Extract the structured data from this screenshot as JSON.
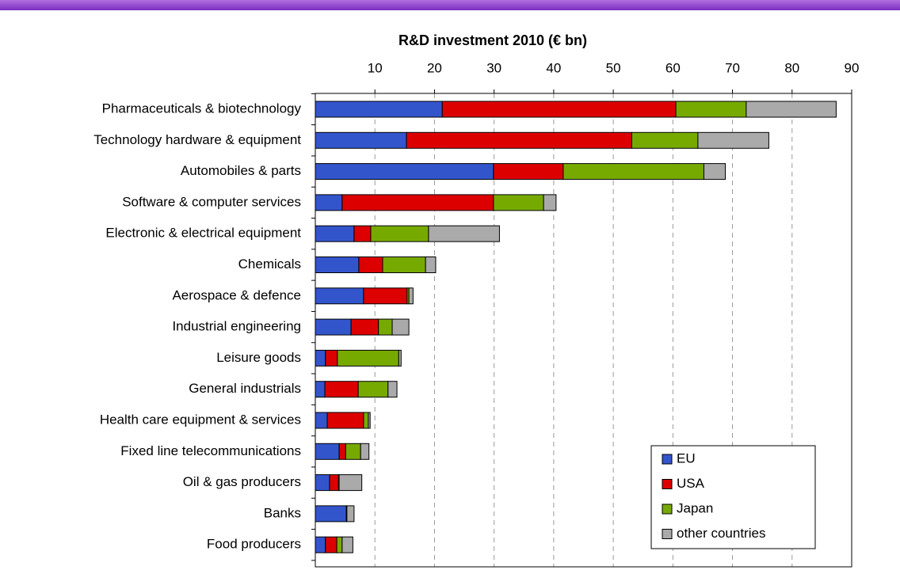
{
  "chart_data": {
    "type": "stacked-barh",
    "title": "R&D investment 2010 (€ bn)",
    "categories": [
      "Pharmaceuticals & biotechnology",
      "Technology hardware & equipment",
      "Automobiles & parts",
      "Software & computer services",
      "Electronic & electrical equipment",
      "Chemicals",
      "Aerospace & defence",
      "Industrial engineering",
      "Leisure goods",
      "General industrials",
      "Health care equipment & services",
      "Fixed line telecommunications",
      "Oil & gas producers",
      "Banks",
      "Food producers"
    ],
    "series": [
      {
        "name": "EU",
        "color": "#3355cc",
        "values": [
          21.3,
          15.3,
          29.9,
          4.5,
          6.5,
          7.3,
          8.1,
          6.0,
          1.7,
          1.6,
          2.0,
          4.0,
          2.4,
          5.2,
          1.7
        ]
      },
      {
        "name": "USA",
        "color": "#dd0000",
        "values": [
          39.2,
          37.8,
          11.7,
          25.4,
          2.8,
          4.0,
          7.3,
          4.6,
          2.0,
          5.6,
          6.1,
          1.1,
          1.5,
          0.1,
          1.9
        ]
      },
      {
        "name": "Japan",
        "color": "#77aa00",
        "values": [
          11.8,
          11.1,
          23.6,
          8.4,
          9.7,
          7.2,
          0.3,
          2.3,
          10.3,
          5.0,
          0.8,
          2.5,
          0.1,
          0,
          0.9
        ]
      },
      {
        "name": "other countries",
        "color": "#aaaaaa",
        "values": [
          15.1,
          11.9,
          3.6,
          2.1,
          11.9,
          1.7,
          0.7,
          2.8,
          0.4,
          1.5,
          0.3,
          1.4,
          3.8,
          1.2,
          1.8
        ]
      }
    ],
    "xlim": [
      0,
      90
    ],
    "xticks": [
      10,
      20,
      30,
      40,
      50,
      60,
      70,
      80,
      90
    ],
    "grid": true,
    "legend": "lower right"
  }
}
